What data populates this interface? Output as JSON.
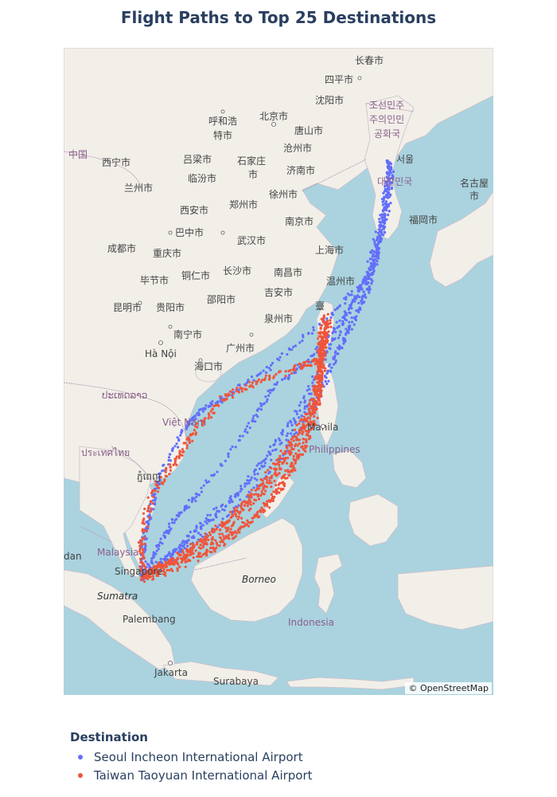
{
  "title": "Flight Paths to Top 25 Destinations",
  "attribution": "© OpenStreetMap",
  "colors": {
    "water": "#aad3df",
    "land": "#f2efe9",
    "border": "#b59ab5",
    "series_seoul": "#636efa",
    "series_taiwan": "#ef553b"
  },
  "legend": {
    "title": "Destination",
    "items": [
      {
        "name": "Seoul Incheon International Airport",
        "color": "#636efa"
      },
      {
        "name": "Taiwan Taoyuan International Airport",
        "color": "#ef553b"
      }
    ]
  },
  "map_labels": {
    "changchun": "长春市",
    "siping": "四平市",
    "shenyang": "沈阳市",
    "korea_n": "조선민주",
    "korea_n2": "주의인민",
    "korea_n3": "공화국",
    "hohhot": "呼和浩",
    "hohhot2": "特市",
    "beijing": "北京市",
    "tangshan": "唐山市",
    "china": "中国",
    "xining": "西宁市",
    "lvliang": "吕梁市",
    "shijiazhuang": "石家庄",
    "shijiazhuang2": "市",
    "cangzhou": "沧州市",
    "jinan": "济南市",
    "lanzhou": "兰州市",
    "linfen": "临汾市",
    "seoul": "서울",
    "korea_s": "대한민국",
    "nagoya": "名古屋",
    "nagoya2": "市",
    "xuzhou": "徐州市",
    "zhengzhou": "郑州市",
    "xian": "西安市",
    "fukuoka": "福岡市",
    "nanjing": "南京市",
    "bazhong": "巴中市",
    "chengdu": "成都市",
    "wuhan": "武汉市",
    "shanghai": "上海市",
    "chongqing": "重庆市",
    "changsha": "长沙市",
    "nanchang": "南昌市",
    "bijie": "毕节市",
    "tongren": "铜仁市",
    "wenzhou": "温州市",
    "shaoyang": "邵阳市",
    "jian": "吉安市",
    "kunming": "昆明市",
    "guiyang": "贵阳市",
    "quanzhou": "泉州市",
    "taipei": "臺",
    "nanning": "南宁市",
    "guangzhou": "广州市",
    "hanoi": "Hà Nội",
    "haikou": "海口市",
    "laos": "ປະເທດລາວ",
    "vietnam": "Việt Nam",
    "manila": "Manila",
    "philippines": "Philippines",
    "thailand": "ประเทศไทย",
    "cambodia": "ភ្នំពេញ",
    "malaysia": "Malaysia",
    "singapore": "Singapore",
    "borneo": "Borneo",
    "sumatra": "Sumatra",
    "palembang": "Palembang",
    "indonesia": "Indonesia",
    "jakarta": "Jakarta",
    "surabaya": "Surabaya",
    "dan": "dan"
  }
}
